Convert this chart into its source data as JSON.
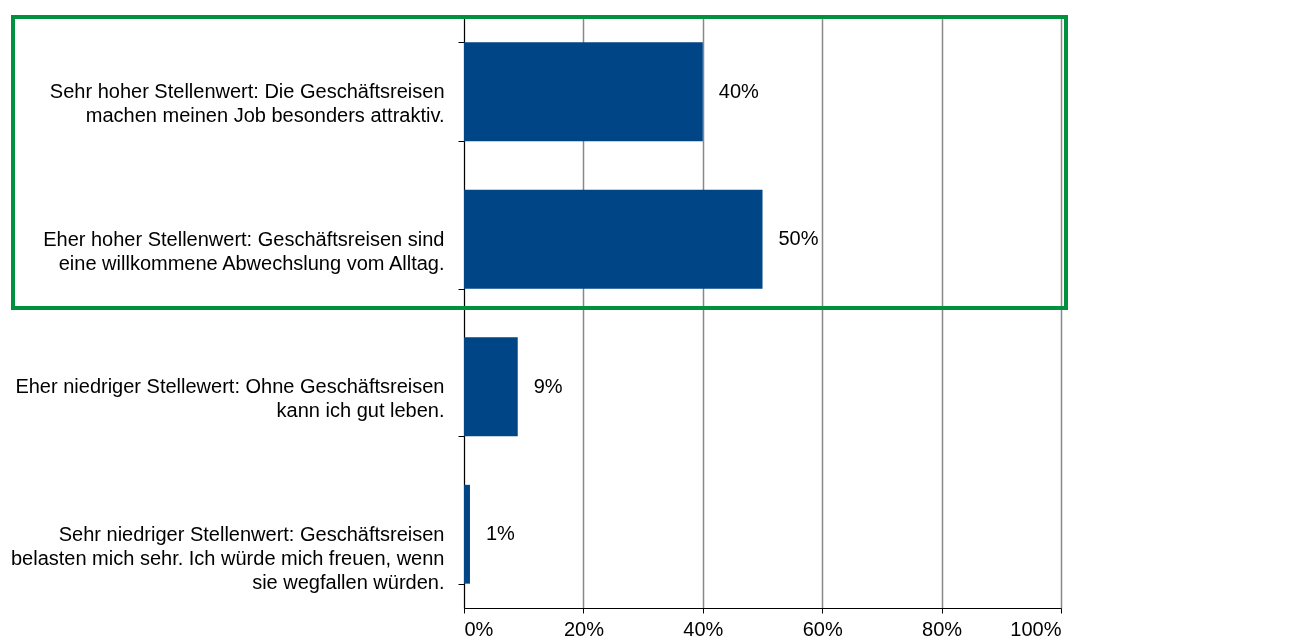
{
  "chart_data": {
    "type": "bar",
    "orientation": "horizontal",
    "categories": [
      "Sehr hoher Stellenwert: Die Geschäftsreisen\nmachen meinen Job besonders attraktiv.",
      "Eher hoher Stellenwert: Geschäftsreisen sind\neine willkommene Abwechslung vom Alltag.",
      "Eher niedriger Stellewert: Ohne Geschäftsreisen\nkann ich gut leben.",
      "Sehr niedriger Stellenwert: Geschäftsreisen\nbelasten mich sehr. Ich würde mich freuen, wenn\nsie wegfallen würden."
    ],
    "values": [
      40,
      50,
      9,
      1
    ],
    "value_labels": [
      "40%",
      "50%",
      "9%",
      "1%"
    ],
    "color": "#004586",
    "xlim": [
      0,
      100
    ],
    "xticks": [
      {
        "value": 0,
        "label": "0%"
      },
      {
        "value": 20,
        "label": "20%"
      },
      {
        "value": 40,
        "label": "40%"
      },
      {
        "value": 60,
        "label": "60%"
      },
      {
        "value": 80,
        "label": "80%"
      },
      {
        "value": 100,
        "label": "100%"
      }
    ],
    "grid": "x"
  }
}
